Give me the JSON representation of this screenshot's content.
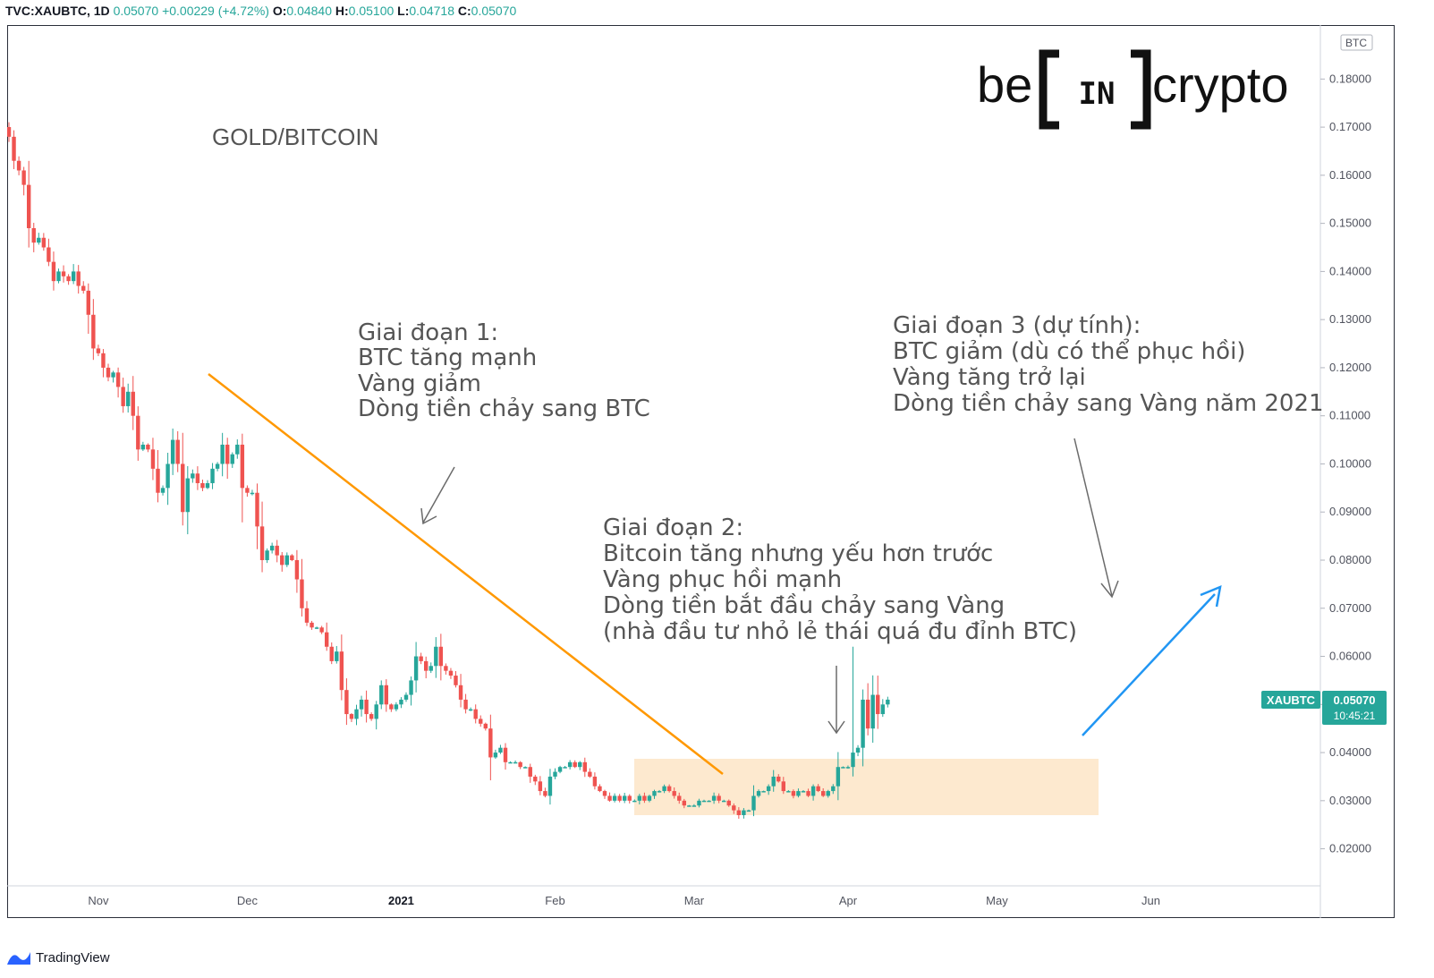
{
  "header": {
    "symbol": "TVC:XAUBTC, 1D",
    "last": "0.05070",
    "change": "+0.00229 (+4.72%)",
    "open_label": "O:",
    "open": "0.04840",
    "high_label": "H:",
    "high": "0.05100",
    "low_label": "L:",
    "low": "0.04718",
    "close_label": "C:",
    "close": "0.05070"
  },
  "logo": {
    "left": "be",
    "middle": "IN",
    "right": "crypto"
  },
  "footer": {
    "brand": "TradingView"
  },
  "colors": {
    "up": "#26a69a",
    "down": "#ef5350",
    "trendline": "#ff9800",
    "arrow_up": "#2196f3",
    "range_box": "#fde9cf",
    "annotation_arrow": "#6b6b6b"
  },
  "chart_data": {
    "type": "candlestick",
    "title": "GOLD/BITCOIN",
    "ylabel": "",
    "y_unit": "BTC",
    "ylim": [
      0.0123,
      0.1875
    ],
    "y_ticks": [
      "0.02000",
      "0.03000",
      "0.04000",
      "0.05000",
      "0.06000",
      "0.07000",
      "0.08000",
      "0.09000",
      "0.10000",
      "0.11000",
      "0.12000",
      "0.13000",
      "0.14000",
      "0.15000",
      "0.16000",
      "0.17000",
      "0.18000"
    ],
    "x_ticks": [
      {
        "label": "Nov",
        "index": 18
      },
      {
        "label": "Dec",
        "index": 48
      },
      {
        "label": "2021",
        "index": 79
      },
      {
        "label": "Feb",
        "index": 110
      },
      {
        "label": "Mar",
        "index": 138
      },
      {
        "label": "Apr",
        "index": 169
      },
      {
        "label": "May",
        "index": 199
      },
      {
        "label": "Jun",
        "index": 230
      }
    ],
    "price_label": {
      "symbol": "XAUBTC",
      "value": "0.05070",
      "countdown": "10:45:21"
    },
    "closes": [
      0.168,
      0.163,
      0.161,
      0.158,
      0.149,
      0.146,
      0.147,
      0.145,
      0.142,
      0.138,
      0.14,
      0.139,
      0.138,
      0.14,
      0.137,
      0.136,
      0.131,
      0.124,
      0.123,
      0.12,
      0.118,
      0.119,
      0.116,
      0.112,
      0.115,
      0.11,
      0.103,
      0.104,
      0.103,
      0.099,
      0.094,
      0.095,
      0.1,
      0.105,
      0.1,
      0.09,
      0.097,
      0.098,
      0.096,
      0.095,
      0.096,
      0.099,
      0.1,
      0.104,
      0.1,
      0.102,
      0.104,
      0.095,
      0.094,
      0.094,
      0.087,
      0.08,
      0.082,
      0.083,
      0.081,
      0.079,
      0.081,
      0.08,
      0.076,
      0.07,
      0.067,
      0.066,
      0.066,
      0.065,
      0.062,
      0.059,
      0.061,
      0.053,
      0.048,
      0.047,
      0.049,
      0.051,
      0.048,
      0.047,
      0.05,
      0.054,
      0.05,
      0.049,
      0.05,
      0.051,
      0.052,
      0.055,
      0.06,
      0.059,
      0.057,
      0.058,
      0.062,
      0.058,
      0.057,
      0.056,
      0.054,
      0.051,
      0.049,
      0.049,
      0.047,
      0.046,
      0.045,
      0.039,
      0.04,
      0.041,
      0.038,
      0.038,
      0.038,
      0.037,
      0.037,
      0.035,
      0.034,
      0.032,
      0.031,
      0.035,
      0.036,
      0.037,
      0.037,
      0.038,
      0.037,
      0.038,
      0.036,
      0.035,
      0.033,
      0.032,
      0.031,
      0.03,
      0.031,
      0.03,
      0.031,
      0.03,
      0.03,
      0.031,
      0.03,
      0.031,
      0.032,
      0.032,
      0.033,
      0.032,
      0.031,
      0.03,
      0.029,
      0.029,
      0.029,
      0.03,
      0.03,
      0.03,
      0.031,
      0.03,
      0.03,
      0.029,
      0.028,
      0.027,
      0.028,
      0.028,
      0.031,
      0.032,
      0.032,
      0.033,
      0.035,
      0.034,
      0.032,
      0.032,
      0.031,
      0.032,
      0.032,
      0.031,
      0.033,
      0.032,
      0.031,
      0.032,
      0.033,
      0.037,
      0.037,
      0.037,
      0.04,
      0.041,
      0.051,
      0.045,
      0.052,
      0.048,
      0.05,
      0.051
    ],
    "candle_count": 178
  },
  "annotations": {
    "phase1": [
      "Giai đoạn 1:",
      "BTC tăng mạnh",
      "Vàng giảm",
      "Dòng tiền chảy sang BTC"
    ],
    "phase2": [
      "Giai đoạn 2:",
      "Bitcoin tăng nhưng yếu hơn trước",
      "Vàng phục hồi mạnh",
      "Dòng tiền bắt đầu chảy sang Vàng",
      "(nhà đầu tư nhỏ lẻ thái quá đu đỉnh BTC)"
    ],
    "phase3": [
      "Giai đoạn 3 (dự tính):",
      "BTC giảm (dù có thể phục hồi)",
      "Vàng tăng trở lại",
      "Dòng tiền chảy sang Vàng năm 2021"
    ]
  }
}
